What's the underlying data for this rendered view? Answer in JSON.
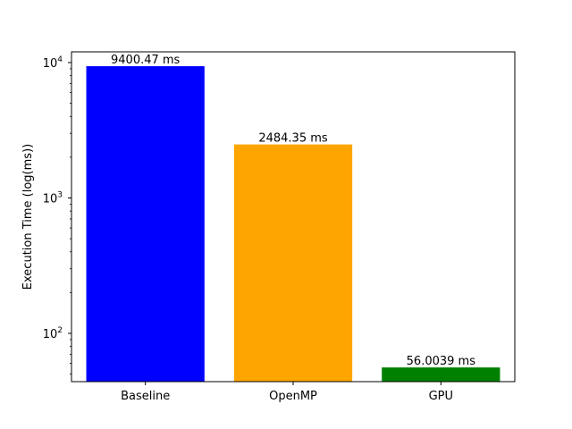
{
  "chart_data": {
    "type": "bar",
    "title": "",
    "xlabel": "",
    "ylabel": "Execution Time (log(ms))",
    "yscale": "log",
    "ylim": [
      44,
      12000
    ],
    "y_ticks": [
      {
        "value": 100,
        "base": "10",
        "exp": "2"
      },
      {
        "value": 1000,
        "base": "10",
        "exp": "3"
      },
      {
        "value": 10000,
        "base": "10",
        "exp": "4"
      }
    ],
    "grid": false,
    "categories": [
      "Baseline",
      "OpenMP",
      "GPU"
    ],
    "values": [
      9400.47,
      2484.35,
      56.0039
    ],
    "data_labels": [
      "9400.47 ms",
      "2484.35 ms",
      "56.0039 ms"
    ],
    "colors": [
      "#0000ff",
      "#ffa500",
      "#008000"
    ]
  }
}
